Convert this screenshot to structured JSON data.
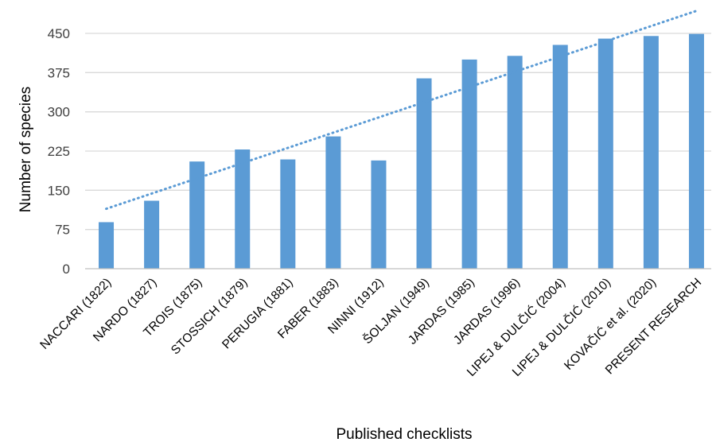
{
  "chart_data": {
    "type": "bar",
    "title": "",
    "xlabel": "Published checklists",
    "ylabel": "Number of species",
    "ylim": [
      0,
      450
    ],
    "yticks": [
      0,
      75,
      150,
      225,
      300,
      375,
      450
    ],
    "grid": true,
    "legend": "none",
    "trendline": "linear, dotted",
    "categories": [
      "NACCARI (1822)",
      "NARDO (1827)",
      "TROIS (1875)",
      "STOSSICH  (1879)",
      "PERUGIA (1881)",
      "FABER (1883)",
      "NINNI (1912)",
      "ŠOLJAN (1949)",
      "JARDAS (1985)",
      "JARDAS (1996)",
      "LIPEJ & DULČIĆ (2004)",
      "LIPEJ & DULČIĆ (2010)",
      "KOVAČIĆ et al. (2020)",
      "PRESENT RESEARCH"
    ],
    "values": [
      89,
      130,
      205,
      228,
      209,
      253,
      207,
      364,
      400,
      407,
      428,
      440,
      445,
      449
    ],
    "colors": {
      "bar": "#5b9bd5",
      "trendline": "#5b9bd5",
      "grid": "#d9d9d9",
      "axis": "#bfbfbf"
    }
  }
}
